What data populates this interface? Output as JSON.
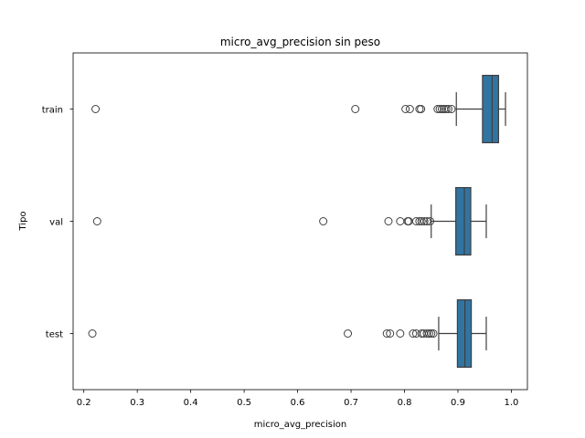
{
  "chart_data": {
    "type": "box",
    "orientation": "horizontal",
    "title": "micro_avg_precision sin peso",
    "xlabel": "micro_avg_precision",
    "ylabel": "Tipo",
    "xlim": [
      0.18,
      1.03
    ],
    "xticks": [
      0.2,
      0.3,
      0.4,
      0.5,
      0.6,
      0.7,
      0.8,
      0.9,
      1.0
    ],
    "xtick_labels": [
      "0.2",
      "0.3",
      "0.4",
      "0.5",
      "0.6",
      "0.7",
      "0.8",
      "0.9",
      "1.0"
    ],
    "categories": [
      "train",
      "val",
      "test"
    ],
    "box_color": "#3274a1",
    "grid": false,
    "boxes": [
      {
        "category": "train",
        "whisker_low": 0.897,
        "q1": 0.946,
        "median": 0.964,
        "q3": 0.976,
        "whisker_high": 0.989,
        "outliers": [
          0.222,
          0.708,
          0.802,
          0.81,
          0.828,
          0.831,
          0.862,
          0.866,
          0.87,
          0.874,
          0.878,
          0.882,
          0.888
        ]
      },
      {
        "category": "val",
        "whisker_low": 0.85,
        "q1": 0.896,
        "median": 0.912,
        "q3": 0.924,
        "whisker_high": 0.953,
        "outliers": [
          0.225,
          0.648,
          0.77,
          0.792,
          0.806,
          0.808,
          0.822,
          0.828,
          0.832,
          0.837,
          0.842,
          0.848
        ]
      },
      {
        "category": "test",
        "whisker_low": 0.864,
        "q1": 0.899,
        "median": 0.913,
        "q3": 0.925,
        "whisker_high": 0.953,
        "outliers": [
          0.216,
          0.694,
          0.767,
          0.773,
          0.792,
          0.816,
          0.822,
          0.832,
          0.836,
          0.842,
          0.846,
          0.85,
          0.854
        ]
      }
    ]
  }
}
